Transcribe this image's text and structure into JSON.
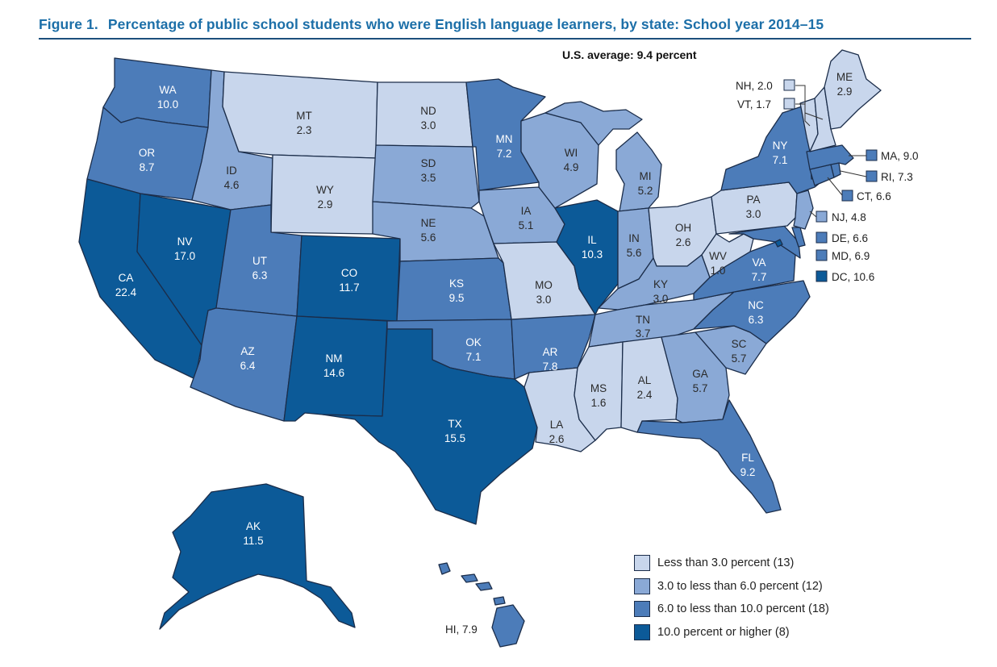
{
  "title": {
    "figure": "Figure 1.",
    "text": "Percentage of public school students who were English language learners, by state: School year 2014–15"
  },
  "average_note": "U.S. average: 9.4 percent",
  "colors": {
    "c1": "#c8d6ec",
    "c2": "#8aa9d6",
    "c3": "#4c7cb9",
    "c4": "#0c5a98",
    "title_blue": "#1c6fa8"
  },
  "legend": [
    {
      "label": "Less than 3.0 percent (13)",
      "color": "c1"
    },
    {
      "label": "3.0 to less than 6.0 percent (12)",
      "color": "c2"
    },
    {
      "label": "6.0 to less than 10.0 percent (18)",
      "color": "c3"
    },
    {
      "label": "10.0 percent or higher (8)",
      "color": "c4"
    }
  ],
  "states": {
    "WA": {
      "abbr": "WA",
      "value": "10.0"
    },
    "OR": {
      "abbr": "OR",
      "value": "8.7"
    },
    "CA": {
      "abbr": "CA",
      "value": "22.4"
    },
    "NV": {
      "abbr": "NV",
      "value": "17.0"
    },
    "ID": {
      "abbr": "ID",
      "value": "4.6"
    },
    "MT": {
      "abbr": "MT",
      "value": "2.3"
    },
    "WY": {
      "abbr": "WY",
      "value": "2.9"
    },
    "UT": {
      "abbr": "UT",
      "value": "6.3"
    },
    "AZ": {
      "abbr": "AZ",
      "value": "6.4"
    },
    "CO": {
      "abbr": "CO",
      "value": "11.7"
    },
    "NM": {
      "abbr": "NM",
      "value": "14.6"
    },
    "ND": {
      "abbr": "ND",
      "value": "3.0"
    },
    "SD": {
      "abbr": "SD",
      "value": "3.5"
    },
    "NE": {
      "abbr": "NE",
      "value": "5.6"
    },
    "KS": {
      "abbr": "KS",
      "value": "9.5"
    },
    "OK": {
      "abbr": "OK",
      "value": "7.1"
    },
    "TX": {
      "abbr": "TX",
      "value": "15.5"
    },
    "MN": {
      "abbr": "MN",
      "value": "7.2"
    },
    "IA": {
      "abbr": "IA",
      "value": "5.1"
    },
    "MO": {
      "abbr": "MO",
      "value": "3.0"
    },
    "AR": {
      "abbr": "AR",
      "value": "7.8"
    },
    "LA": {
      "abbr": "LA",
      "value": "2.6"
    },
    "WI": {
      "abbr": "WI",
      "value": "4.9"
    },
    "IL": {
      "abbr": "IL",
      "value": "10.3"
    },
    "MI": {
      "abbr": "MI",
      "value": "5.2"
    },
    "IN": {
      "abbr": "IN",
      "value": "5.6"
    },
    "OH": {
      "abbr": "OH",
      "value": "2.6"
    },
    "KY": {
      "abbr": "KY",
      "value": "3.0"
    },
    "TN": {
      "abbr": "TN",
      "value": "3.7"
    },
    "MS": {
      "abbr": "MS",
      "value": "1.6"
    },
    "AL": {
      "abbr": "AL",
      "value": "2.4"
    },
    "GA": {
      "abbr": "GA",
      "value": "5.7"
    },
    "FL": {
      "abbr": "FL",
      "value": "9.2"
    },
    "SC": {
      "abbr": "SC",
      "value": "5.7"
    },
    "NC": {
      "abbr": "NC",
      "value": "6.3"
    },
    "VA": {
      "abbr": "VA",
      "value": "7.7"
    },
    "WV": {
      "abbr": "WV",
      "value": "1.0"
    },
    "PA": {
      "abbr": "PA",
      "value": "3.0"
    },
    "NY": {
      "abbr": "NY",
      "value": "7.1"
    },
    "ME": {
      "abbr": "ME",
      "value": "2.9"
    },
    "AK": {
      "abbr": "AK",
      "value": "11.5"
    }
  },
  "side_labels": {
    "NH": "NH, 2.0",
    "VT": "VT, 1.7",
    "MA": "MA, 9.0",
    "RI": "RI, 7.3",
    "CT": "CT, 6.6",
    "NJ": "NJ, 4.8",
    "DE": "DE, 6.6",
    "MD": "MD, 6.9",
    "DC": "DC, 10.6",
    "HI": "HI, 7.9"
  }
}
